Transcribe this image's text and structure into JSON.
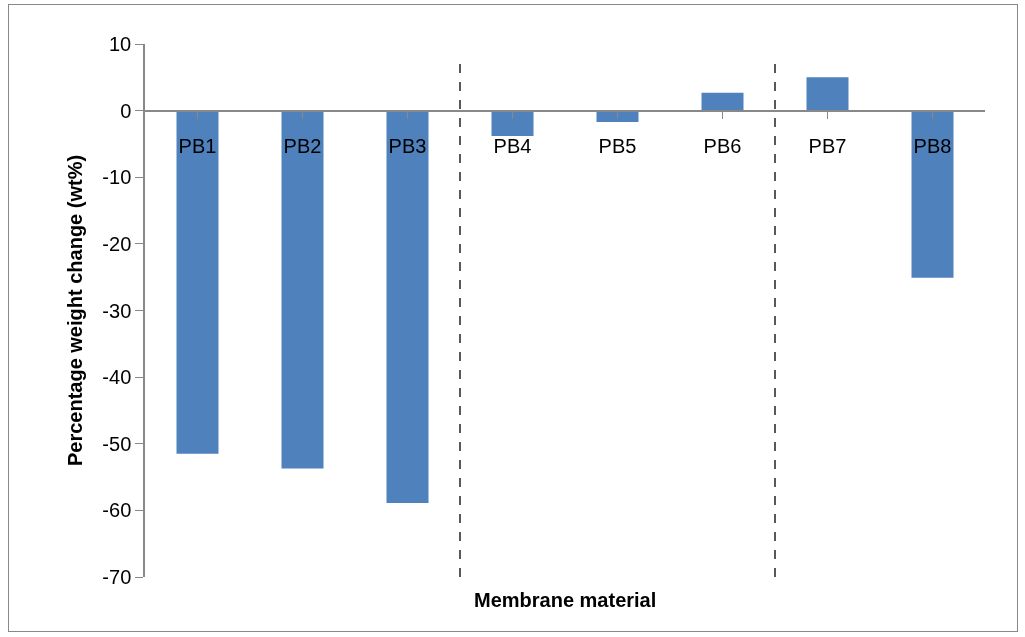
{
  "chart_data": {
    "type": "bar",
    "xlabel": "Membrane material",
    "ylabel": "Percentage weight change (wt%)",
    "categories": [
      "PB1",
      "PB2",
      "PB3",
      "PB4",
      "PB5",
      "PB6",
      "PB7",
      "PB8"
    ],
    "values": [
      -51.5,
      -53.7,
      -58.9,
      -3.8,
      -1.7,
      2.7,
      5.0,
      -25.1
    ],
    "color": "#4f81bd",
    "ylim": [
      -70,
      10
    ],
    "yticks": [
      -70,
      -60,
      -50,
      -40,
      -30,
      -20,
      -10,
      0,
      10
    ],
    "grid": false
  }
}
